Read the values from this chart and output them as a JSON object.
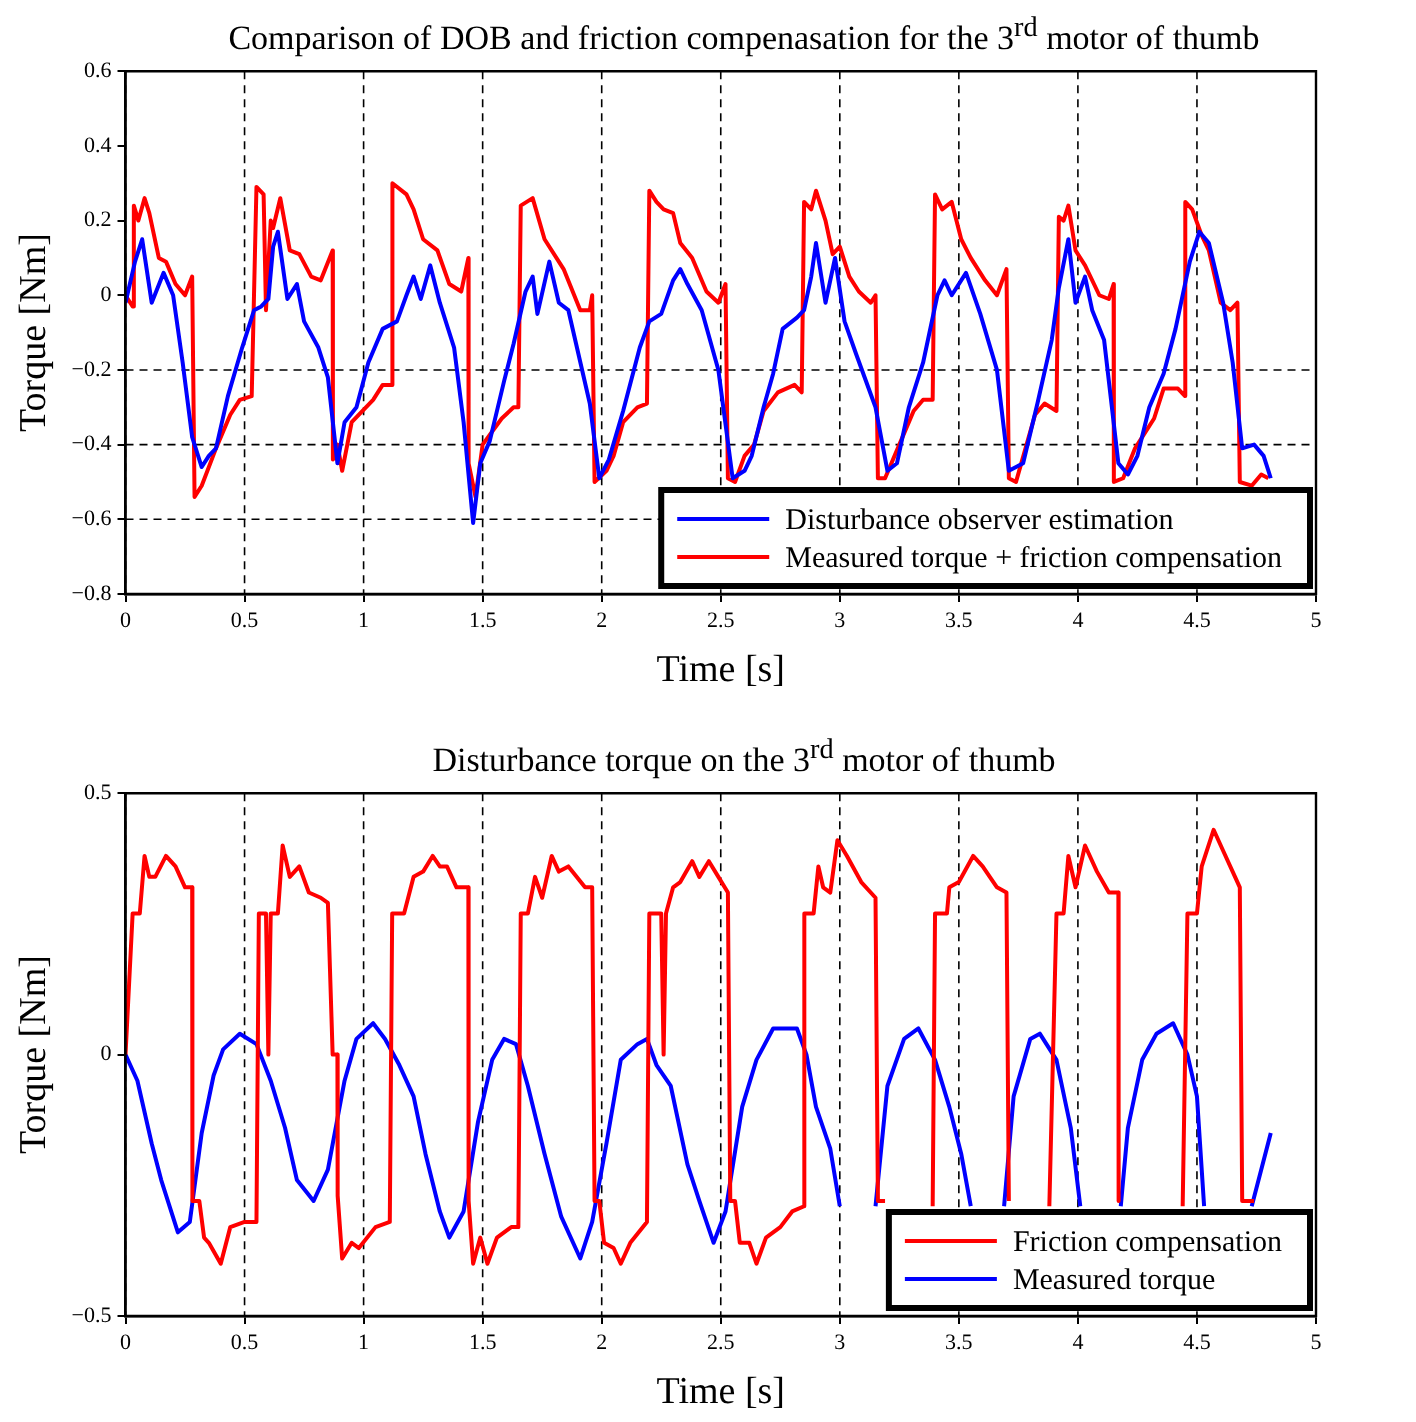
{
  "chart_data": [
    {
      "type": "line",
      "title": "Comparison of DOB and friction compenasation for the 3$^{rd}$ motor of thumb",
      "xlabel": "Time [s]",
      "ylabel": "Torque [Nm]",
      "xlim": [
        0,
        5
      ],
      "ylim": [
        -0.8,
        0.6
      ],
      "xticks": [
        0,
        0.5,
        1,
        1.5,
        2,
        2.5,
        3,
        3.5,
        4,
        4.5,
        5
      ],
      "yticks": [
        {
          "value": -0.8,
          "label": "−0.8"
        },
        {
          "value": -0.6,
          "label": "−0.6"
        },
        {
          "value": -0.4,
          "label": "−0.4"
        },
        {
          "value": -0.2,
          "label": "−0.2"
        },
        0,
        0.2,
        0.4,
        0.6
      ],
      "grid": true,
      "legend": "bottom right",
      "series": [
        {
          "name": "Disturbance observer estimation",
          "color": "#0000ff",
          "x": [
            0,
            0.04,
            0.07,
            0.11,
            0.16,
            0.2,
            0.24,
            0.28,
            0.32,
            0.35,
            0.38,
            0.43,
            0.49,
            0.54,
            0.57,
            0.6,
            0.62,
            0.64,
            0.68,
            0.72,
            0.75,
            0.81,
            0.85,
            0.89,
            0.92,
            0.97,
            1.02,
            1.08,
            1.14,
            1.18,
            1.21,
            1.24,
            1.28,
            1.32,
            1.38,
            1.42,
            1.46,
            1.49,
            1.53,
            1.59,
            1.63,
            1.68,
            1.71,
            1.73,
            1.78,
            1.82,
            1.86,
            1.95,
            1.99,
            2.03,
            2.09,
            2.16,
            2.2,
            2.25,
            2.3,
            2.33,
            2.36,
            2.42,
            2.49,
            2.55,
            2.6,
            2.63,
            2.68,
            2.72,
            2.76,
            2.82,
            2.85,
            2.88,
            2.9,
            2.94,
            2.98,
            3.02,
            3.07,
            3.15,
            3.2,
            3.24,
            3.29,
            3.35,
            3.41,
            3.44,
            3.47,
            3.53,
            3.59,
            3.66,
            3.71,
            3.77,
            3.83,
            3.89,
            3.92,
            3.96,
            3.99,
            4.03,
            4.06,
            4.11,
            4.17,
            4.21,
            4.25,
            4.3,
            4.36,
            4.41,
            4.47,
            4.51,
            4.55,
            4.61,
            4.65,
            4.69,
            4.74,
            4.78,
            4.81
          ],
          "values": [
            -0.02,
            0.09,
            0.15,
            -0.02,
            0.06,
            0,
            -0.18,
            -0.38,
            -0.46,
            -0.43,
            -0.41,
            -0.27,
            -0.14,
            -0.04,
            -0.03,
            -0.01,
            0.13,
            0.17,
            -0.01,
            0.03,
            -0.07,
            -0.14,
            -0.22,
            -0.45,
            -0.34,
            -0.3,
            -0.18,
            -0.09,
            -0.07,
            0,
            0.05,
            -0.01,
            0.08,
            -0.02,
            -0.14,
            -0.34,
            -0.61,
            -0.45,
            -0.39,
            -0.23,
            -0.13,
            0.01,
            0.05,
            -0.05,
            0.09,
            -0.02,
            -0.04,
            -0.29,
            -0.49,
            -0.44,
            -0.31,
            -0.14,
            -0.07,
            -0.05,
            0.04,
            0.07,
            0.03,
            -0.04,
            -0.2,
            -0.49,
            -0.47,
            -0.43,
            -0.3,
            -0.21,
            -0.09,
            -0.06,
            -0.04,
            0.05,
            0.14,
            -0.02,
            0.1,
            -0.07,
            -0.16,
            -0.3,
            -0.47,
            -0.45,
            -0.3,
            -0.18,
            0,
            0.04,
            0,
            0.06,
            -0.05,
            -0.2,
            -0.47,
            -0.45,
            -0.29,
            -0.12,
            0.02,
            0.15,
            -0.02,
            0.05,
            -0.04,
            -0.12,
            -0.45,
            -0.48,
            -0.43,
            -0.3,
            -0.21,
            -0.09,
            0.09,
            0.17,
            0.14,
            -0.02,
            -0.18,
            -0.41,
            -0.4,
            -0.43,
            -0.49
          ]
        },
        {
          "name": "Measured torque + friction compensation",
          "color": "#ff0000",
          "x": [
            0,
            0.03,
            0.035,
            0.054,
            0.08,
            0.1,
            0.14,
            0.17,
            0.21,
            0.25,
            0.28,
            0.29,
            0.32,
            0.38,
            0.44,
            0.48,
            0.53,
            0.55,
            0.58,
            0.59,
            0.61,
            0.62,
            0.65,
            0.69,
            0.73,
            0.78,
            0.82,
            0.87,
            0.871,
            0.89,
            0.91,
            0.95,
            1.04,
            1.08,
            1.12,
            1.121,
            1.18,
            1.21,
            1.25,
            1.31,
            1.36,
            1.41,
            1.44,
            1.441,
            1.47,
            1.5,
            1.58,
            1.63,
            1.65,
            1.66,
            1.71,
            1.76,
            1.84,
            1.91,
            1.95,
            1.96,
            1.97,
            2.02,
            2.05,
            2.09,
            2.15,
            2.19,
            2.2,
            2.23,
            2.26,
            2.3,
            2.33,
            2.38,
            2.44,
            2.49,
            2.52,
            2.53,
            2.56,
            2.6,
            2.64,
            2.68,
            2.74,
            2.81,
            2.84,
            2.85,
            2.88,
            2.9,
            2.94,
            2.97,
            3,
            3.04,
            3.08,
            3.13,
            3.15,
            3.16,
            3.19,
            3.25,
            3.31,
            3.35,
            3.39,
            3.4,
            3.43,
            3.47,
            3.51,
            3.55,
            3.61,
            3.66,
            3.7,
            3.71,
            3.74,
            3.78,
            3.82,
            3.86,
            3.91,
            3.92,
            3.94,
            3.96,
            3.99,
            4.03,
            4.09,
            4.13,
            4.15,
            4.151,
            4.19,
            4.24,
            4.32,
            4.36,
            4.42,
            4.45,
            4.451,
            4.48,
            4.52,
            4.55,
            4.6,
            4.64,
            4.67,
            4.68,
            4.73,
            4.77,
            4.8
          ],
          "values": [
            0,
            -0.03,
            0.24,
            0.2,
            0.26,
            0.22,
            0.1,
            0.09,
            0.03,
            0,
            0.05,
            -0.54,
            -0.51,
            -0.41,
            -0.32,
            -0.28,
            -0.27,
            0.29,
            0.27,
            -0.04,
            0.2,
            0.18,
            0.26,
            0.12,
            0.11,
            0.05,
            0.04,
            0.12,
            -0.44,
            -0.4,
            -0.47,
            -0.34,
            -0.28,
            -0.24,
            -0.24,
            0.3,
            0.27,
            0.23,
            0.15,
            0.12,
            0.03,
            0.01,
            0.1,
            -0.45,
            -0.54,
            -0.4,
            -0.33,
            -0.3,
            -0.3,
            0.24,
            0.26,
            0.15,
            0.07,
            -0.04,
            -0.04,
            0,
            -0.5,
            -0.47,
            -0.43,
            -0.34,
            -0.3,
            -0.29,
            0.28,
            0.25,
            0.23,
            0.22,
            0.14,
            0.1,
            0.01,
            -0.02,
            0.03,
            -0.49,
            -0.5,
            -0.43,
            -0.4,
            -0.31,
            -0.26,
            -0.24,
            -0.26,
            0.25,
            0.23,
            0.28,
            0.2,
            0.11,
            0.13,
            0.05,
            0.01,
            -0.02,
            0,
            -0.49,
            -0.49,
            -0.4,
            -0.31,
            -0.28,
            -0.28,
            0.27,
            0.23,
            0.25,
            0.15,
            0.1,
            0.04,
            0,
            0.07,
            -0.49,
            -0.5,
            -0.41,
            -0.32,
            -0.29,
            -0.31,
            0.21,
            0.2,
            0.24,
            0.12,
            0.08,
            0,
            -0.01,
            0.03,
            -0.5,
            -0.49,
            -0.41,
            -0.33,
            -0.25,
            -0.25,
            -0.27,
            0.25,
            0.23,
            0.16,
            0.12,
            -0.02,
            -0.04,
            -0.02,
            -0.5,
            -0.51,
            -0.48,
            -0.49
          ]
        }
      ]
    },
    {
      "type": "line",
      "title": "Disturbance torque on the 3$^{rd}$ motor of thumb",
      "xlabel": "Time [s]",
      "ylabel": "Torque [Nm]",
      "xlim": [
        0,
        5
      ],
      "ylim": [
        -0.5,
        0.5
      ],
      "xticks": [
        0,
        0.5,
        1,
        1.5,
        2,
        2.5,
        3,
        3.5,
        4,
        4.5,
        5
      ],
      "yticks": [
        {
          "value": -0.5,
          "label": "−0.5"
        },
        0,
        0.5
      ],
      "grid": true,
      "legend": "bottom right",
      "series": [
        {
          "name": "Friction compensation",
          "color": "#ff0000",
          "x": [
            0,
            0.03,
            0.06,
            0.08,
            0.1,
            0.125,
            0.17,
            0.21,
            0.25,
            0.28,
            0.281,
            0.31,
            0.33,
            0.35,
            0.4,
            0.44,
            0.5,
            0.55,
            0.56,
            0.59,
            0.6,
            0.61,
            0.64,
            0.66,
            0.69,
            0.73,
            0.77,
            0.82,
            0.85,
            0.87,
            0.88,
            0.89,
            0.891,
            0.91,
            0.95,
            0.98,
            1.05,
            1.11,
            1.12,
            1.17,
            1.21,
            1.25,
            1.29,
            1.32,
            1.35,
            1.39,
            1.44,
            1.441,
            1.46,
            1.49,
            1.52,
            1.56,
            1.62,
            1.65,
            1.66,
            1.69,
            1.72,
            1.75,
            1.79,
            1.82,
            1.86,
            1.93,
            1.96,
            1.97,
            1.99,
            2.01,
            2.05,
            2.08,
            2.12,
            2.19,
            2.2,
            2.25,
            2.26,
            2.27,
            2.3,
            2.33,
            2.38,
            2.41,
            2.45,
            2.49,
            2.53,
            2.54,
            2.56,
            2.58,
            2.62,
            2.65,
            2.69,
            2.75,
            2.8,
            2.85,
            2.851,
            2.89,
            2.91,
            2.93,
            2.96,
            2.99,
            3.03,
            3.09,
            3.15,
            3.16,
            3.19,
            3.25,
            3.35,
            3.39,
            3.4,
            3.45,
            3.46,
            3.5,
            3.56,
            3.6,
            3.66,
            3.7,
            3.71,
            3.8,
            3.88,
            3.91,
            3.94,
            3.96,
            3.99,
            4.03,
            4.08,
            4.13,
            4.17,
            4.171,
            4.3,
            4.38,
            4.44,
            4.46,
            4.5,
            4.52,
            4.57,
            4.61,
            4.66,
            4.68,
            4.69,
            4.74
          ],
          "values": [
            0,
            0.27,
            0.27,
            0.38,
            0.34,
            0.34,
            0.38,
            0.36,
            0.32,
            0.32,
            -0.28,
            -0.28,
            -0.35,
            -0.36,
            -0.4,
            -0.33,
            -0.32,
            -0.32,
            0.27,
            0.27,
            0,
            0.27,
            0.27,
            0.4,
            0.34,
            0.36,
            0.31,
            0.3,
            0.29,
            0,
            0,
            0,
            -0.27,
            -0.39,
            -0.36,
            -0.37,
            -0.33,
            -0.32,
            0.27,
            0.27,
            0.34,
            0.35,
            0.38,
            0.36,
            0.36,
            0.32,
            0.32,
            -0.28,
            -0.4,
            -0.35,
            -0.4,
            -0.35,
            -0.33,
            -0.33,
            0.27,
            0.27,
            0.34,
            0.3,
            0.38,
            0.35,
            0.36,
            0.32,
            0.32,
            -0.28,
            -0.28,
            -0.36,
            -0.37,
            -0.4,
            -0.36,
            -0.32,
            0.27,
            0.27,
            0,
            0.27,
            0.32,
            0.33,
            0.37,
            0.34,
            0.37,
            0.34,
            0.31,
            -0.28,
            -0.28,
            -0.36,
            -0.36,
            -0.4,
            -0.35,
            -0.33,
            -0.3,
            -0.29,
            0.27,
            0.27,
            0.36,
            0.32,
            0.31,
            0.41,
            0.38,
            0.33,
            0.3,
            -0.28,
            -0.28,
            null,
            null,
            -0.29,
            0.27,
            0.27,
            0.32,
            0.33,
            0.38,
            0.36,
            0.32,
            0.31,
            -0.28,
            null,
            -0.29,
            0.27,
            0.27,
            0.38,
            0.32,
            0.4,
            0.35,
            0.31,
            0.31,
            -0.28,
            null,
            null,
            -0.29,
            0.27,
            0.27,
            0.36,
            0.43,
            0.39,
            0.34,
            0.32,
            -0.28,
            -0.28
          ]
        },
        {
          "name": "Measured torque",
          "color": "#0000ff",
          "x": [
            0,
            0.05,
            0.11,
            0.15,
            0.22,
            0.27,
            0.32,
            0.37,
            0.41,
            0.48,
            0.55,
            0.61,
            0.67,
            0.72,
            0.79,
            0.85,
            0.92,
            0.97,
            1.04,
            1.09,
            1.15,
            1.21,
            1.26,
            1.32,
            1.36,
            1.42,
            1.48,
            1.54,
            1.59,
            1.64,
            1.69,
            1.76,
            1.83,
            1.91,
            1.96,
            2.02,
            2.08,
            2.15,
            2.19,
            2.23,
            2.29,
            2.36,
            2.41,
            2.47,
            2.52,
            2.59,
            2.65,
            2.72,
            2.82,
            2.86,
            2.9,
            2.96,
            3,
            3.08,
            3.15,
            3.2,
            3.27,
            3.33,
            3.4,
            3.46,
            3.51,
            3.55,
            3.63,
            3.69,
            3.73,
            3.8,
            3.84,
            3.91,
            3.97,
            4.01,
            4.08,
            4.18,
            4.21,
            4.27,
            4.33,
            4.4,
            4.46,
            4.5,
            4.53,
            4.6,
            4.73,
            4.81
          ],
          "values": [
            0,
            -0.05,
            -0.17,
            -0.24,
            -0.34,
            -0.32,
            -0.15,
            -0.04,
            0.01,
            0.04,
            0.02,
            -0.05,
            -0.14,
            -0.24,
            -0.28,
            -0.22,
            -0.05,
            0.03,
            0.06,
            0.03,
            -0.02,
            -0.08,
            -0.19,
            -0.3,
            -0.35,
            -0.3,
            -0.13,
            -0.01,
            0.03,
            0.02,
            -0.06,
            -0.19,
            -0.31,
            -0.39,
            -0.32,
            -0.17,
            -0.01,
            0.02,
            0.03,
            -0.02,
            -0.06,
            -0.21,
            -0.28,
            -0.36,
            -0.3,
            -0.1,
            -0.01,
            0.05,
            0.05,
            0,
            -0.1,
            -0.18,
            -0.29,
            null,
            -0.29,
            -0.06,
            0.03,
            0.05,
            -0.01,
            -0.1,
            -0.19,
            -0.29,
            null,
            -0.29,
            -0.08,
            0.03,
            0.04,
            -0.01,
            -0.14,
            -0.29,
            null,
            -0.29,
            -0.14,
            -0.01,
            0.04,
            0.06,
            0,
            -0.08,
            -0.29,
            null,
            -0.29,
            -0.15
          ]
        }
      ]
    }
  ]
}
